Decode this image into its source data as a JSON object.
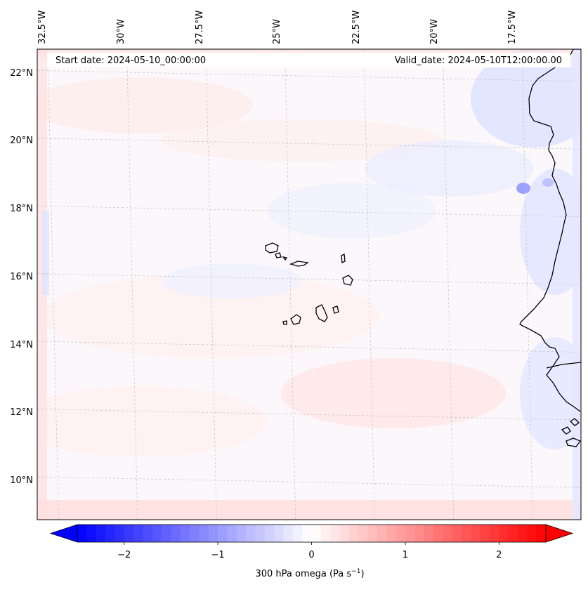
{
  "map": {
    "start_date_label": "Start date: 2024-05-10_00:00:00",
    "valid_date_label": "Valid_date: 2024-05-10T12:00:00.00",
    "lon_labels": [
      {
        "lon": -32.5,
        "label": "32.5°W"
      },
      {
        "lon": -30.0,
        "label": "30°W"
      },
      {
        "lon": -27.5,
        "label": "27.5°W"
      },
      {
        "lon": -25.0,
        "label": "25°W"
      },
      {
        "lon": -22.5,
        "label": "22.5°W"
      },
      {
        "lon": -20.0,
        "label": "20°W"
      },
      {
        "lon": -17.5,
        "label": "17.5°W"
      }
    ],
    "lat_labels": [
      {
        "lat": 22,
        "label": "22°N"
      },
      {
        "lat": 20,
        "label": "20°N"
      },
      {
        "lat": 18,
        "label": "18°N"
      },
      {
        "lat": 16,
        "label": "16°N"
      },
      {
        "lat": 14,
        "label": "14°N"
      },
      {
        "lat": 12,
        "label": "12°N"
      },
      {
        "lat": 10,
        "label": "10°N"
      }
    ],
    "lon_range": [
      -33.0,
      -15.8
    ],
    "lat_range": [
      8.9,
      22.8
    ],
    "colors": {
      "negative": "#0000ff",
      "zero": "#ffffff",
      "positive": "#ff0000",
      "coastline": "#000000",
      "gridline": "#bbbbbb"
    }
  },
  "colorbar": {
    "label": "300 hPa omega (Pa s⁻¹)",
    "label_text": "300 hPa omega (Pa s",
    "label_sup": "−1",
    "label_close": ")",
    "vmin": -2.5,
    "vmax": 2.5,
    "extend": "both",
    "ticks": [
      {
        "value": -2,
        "label": "−2"
      },
      {
        "value": -1,
        "label": "−1"
      },
      {
        "value": 0,
        "label": "0"
      },
      {
        "value": 1,
        "label": "1"
      },
      {
        "value": 2,
        "label": "2"
      }
    ]
  }
}
